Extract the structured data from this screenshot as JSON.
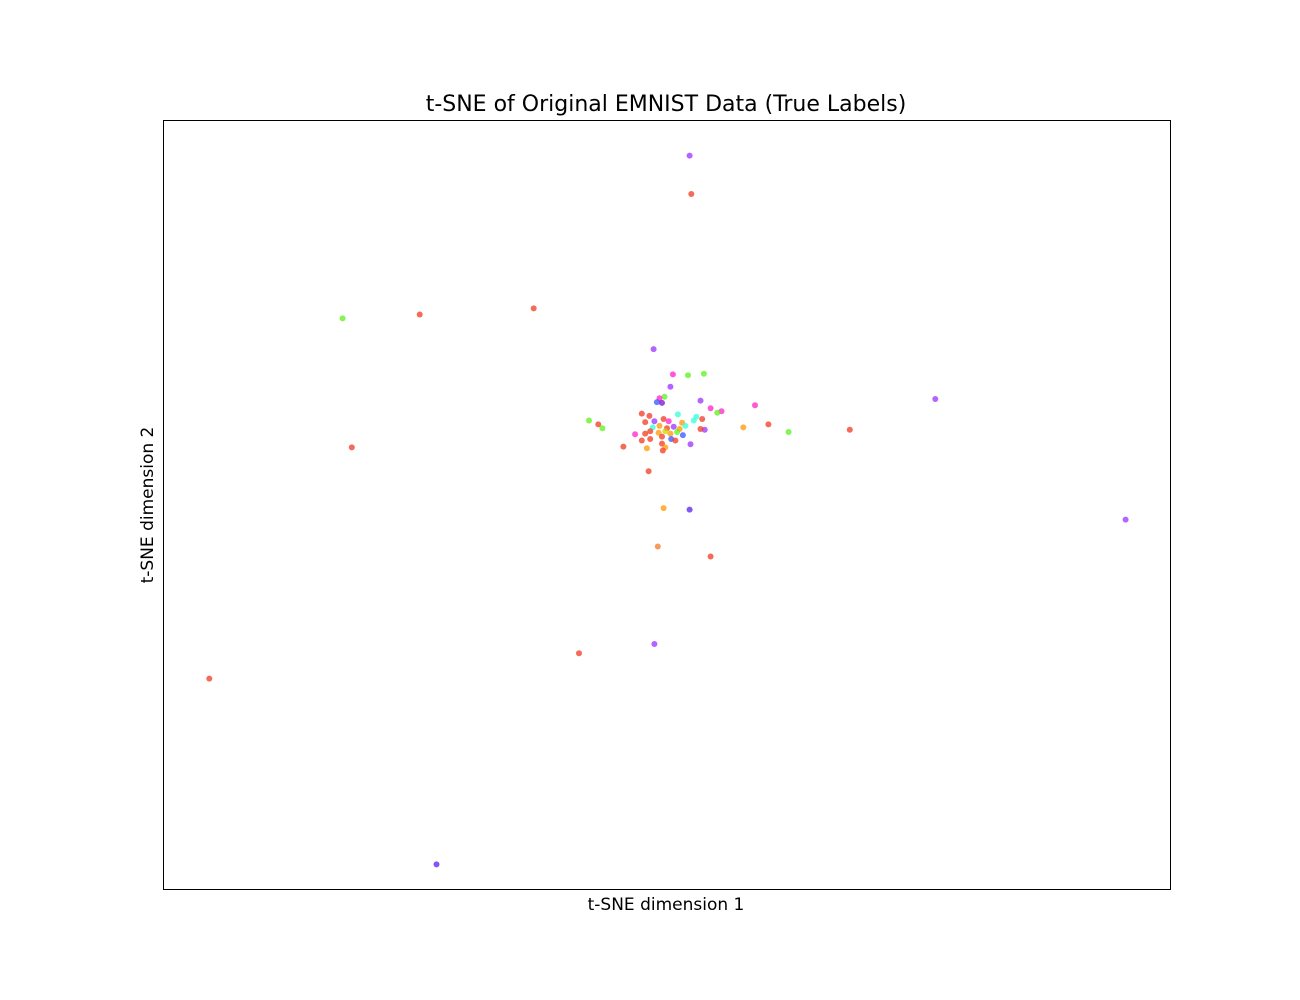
{
  "chart_data": {
    "type": "scatter",
    "title": "t-SNE of Original EMNIST Data (True Labels)",
    "xlabel": "t-SNE dimension 1",
    "ylabel": "t-SNE dimension 2",
    "xlim": [
      -60,
      60
    ],
    "ylim": [
      -60,
      40
    ],
    "grid": false,
    "legend": "none",
    "ticks": "hidden",
    "marker_alpha": 0.75,
    "points": [
      {
        "x": 2.7,
        "y": 35.5,
        "color": "#9b30ff"
      },
      {
        "x": 2.9,
        "y": 30.5,
        "color": "#f23a22"
      },
      {
        "x": -38.7,
        "y": 14.3,
        "color": "#5cf21a"
      },
      {
        "x": -29.5,
        "y": 14.8,
        "color": "#f23a22"
      },
      {
        "x": -15.9,
        "y": 15.6,
        "color": "#f23a22"
      },
      {
        "x": -1.6,
        "y": 10.3,
        "color": "#9b30ff"
      },
      {
        "x": 0.7,
        "y": 7.0,
        "color": "#ff22cc"
      },
      {
        "x": 2.5,
        "y": 6.9,
        "color": "#5cf21a"
      },
      {
        "x": 4.4,
        "y": 7.1,
        "color": "#5cf21a"
      },
      {
        "x": 0.4,
        "y": 5.4,
        "color": "#9b30ff"
      },
      {
        "x": -0.3,
        "y": 4.1,
        "color": "#5cf21a"
      },
      {
        "x": -0.9,
        "y": 3.9,
        "color": "#ff22cc"
      },
      {
        "x": -1.2,
        "y": 3.4,
        "color": "#3355ff"
      },
      {
        "x": -0.6,
        "y": 3.3,
        "color": "#7a0fd0"
      },
      {
        "x": 4.0,
        "y": 3.6,
        "color": "#9b30ff"
      },
      {
        "x": 10.5,
        "y": 3.0,
        "color": "#ff22cc"
      },
      {
        "x": 5.2,
        "y": 2.6,
        "color": "#ff22cc"
      },
      {
        "x": 6.5,
        "y": 2.2,
        "color": "#ff22cc"
      },
      {
        "x": 6.0,
        "y": 2.0,
        "color": "#5cf21a"
      },
      {
        "x": 32.0,
        "y": 3.8,
        "color": "#9b30ff"
      },
      {
        "x": -3.0,
        "y": 1.9,
        "color": "#f23a22"
      },
      {
        "x": -2.1,
        "y": 1.6,
        "color": "#f23a22"
      },
      {
        "x": 1.3,
        "y": 1.8,
        "color": "#33ffdd"
      },
      {
        "x": 3.5,
        "y": 1.5,
        "color": "#33ffdd"
      },
      {
        "x": -9.3,
        "y": 1.0,
        "color": "#5cf21a"
      },
      {
        "x": -2.6,
        "y": 0.8,
        "color": "#f23a22"
      },
      {
        "x": -1.5,
        "y": 0.9,
        "color": "#9b30ff"
      },
      {
        "x": -0.4,
        "y": 1.2,
        "color": "#f23a22"
      },
      {
        "x": 0.2,
        "y": 0.9,
        "color": "#ff22cc"
      },
      {
        "x": 1.8,
        "y": 0.7,
        "color": "#ff9800"
      },
      {
        "x": 3.2,
        "y": 1.0,
        "color": "#33ffdd"
      },
      {
        "x": 4.2,
        "y": 1.2,
        "color": "#f23a22"
      },
      {
        "x": -8.2,
        "y": 0.5,
        "color": "#f23a22"
      },
      {
        "x": 12.1,
        "y": 0.5,
        "color": "#f23a22"
      },
      {
        "x": 9.1,
        "y": 0.1,
        "color": "#ff9800"
      },
      {
        "x": -7.7,
        "y": 0.0,
        "color": "#5cf21a"
      },
      {
        "x": -1.7,
        "y": 0.1,
        "color": "#33ffdd"
      },
      {
        "x": -0.9,
        "y": 0.3,
        "color": "#ff9800"
      },
      {
        "x": 0.0,
        "y": 0.0,
        "color": "#f23a22"
      },
      {
        "x": 0.8,
        "y": 0.2,
        "color": "#9b30ff"
      },
      {
        "x": 1.5,
        "y": -0.1,
        "color": "#ff9800"
      },
      {
        "x": 2.2,
        "y": 0.3,
        "color": "#33ffdd"
      },
      {
        "x": 4.5,
        "y": -0.2,
        "color": "#9b30ff"
      },
      {
        "x": 4.0,
        "y": -0.1,
        "color": "#f23a22"
      },
      {
        "x": 21.8,
        "y": -0.2,
        "color": "#f23a22"
      },
      {
        "x": 14.5,
        "y": -0.5,
        "color": "#5cf21a"
      },
      {
        "x": -2.0,
        "y": -0.4,
        "color": "#f23a22"
      },
      {
        "x": -1.0,
        "y": -0.6,
        "color": "#ff9800"
      },
      {
        "x": -0.2,
        "y": -0.4,
        "color": "#d4d400"
      },
      {
        "x": 0.4,
        "y": -0.7,
        "color": "#ff9800"
      },
      {
        "x": 1.2,
        "y": -0.5,
        "color": "#5cf21a"
      },
      {
        "x": 1.9,
        "y": -0.9,
        "color": "#3355ff"
      },
      {
        "x": -3.8,
        "y": -0.8,
        "color": "#ff22cc"
      },
      {
        "x": -2.6,
        "y": -0.7,
        "color": "#f23a22"
      },
      {
        "x": -0.6,
        "y": -1.1,
        "color": "#f23a22"
      },
      {
        "x": 0.5,
        "y": -1.4,
        "color": "#3355ff"
      },
      {
        "x": 1.0,
        "y": -1.6,
        "color": "#f23a22"
      },
      {
        "x": -2.0,
        "y": -1.4,
        "color": "#f23a22"
      },
      {
        "x": -3.0,
        "y": -1.6,
        "color": "#f23a22"
      },
      {
        "x": -5.2,
        "y": -2.4,
        "color": "#f23a22"
      },
      {
        "x": -0.6,
        "y": -2.0,
        "color": "#f23a22"
      },
      {
        "x": -0.2,
        "y": -2.5,
        "color": "#ff9800"
      },
      {
        "x": -2.4,
        "y": -2.6,
        "color": "#ff9800"
      },
      {
        "x": 2.8,
        "y": -2.1,
        "color": "#9b30ff"
      },
      {
        "x": -0.5,
        "y": -2.9,
        "color": "#f23a22"
      },
      {
        "x": -37.6,
        "y": -2.5,
        "color": "#f23a22"
      },
      {
        "x": -2.2,
        "y": -5.6,
        "color": "#f23a22"
      },
      {
        "x": -0.4,
        "y": -10.4,
        "color": "#ff9800"
      },
      {
        "x": 2.7,
        "y": -10.6,
        "color": "#5a1ff0"
      },
      {
        "x": 54.7,
        "y": -11.9,
        "color": "#9b30ff"
      },
      {
        "x": -1.1,
        "y": -15.4,
        "color": "#f57a22"
      },
      {
        "x": 5.2,
        "y": -16.7,
        "color": "#f23a22"
      },
      {
        "x": -1.5,
        "y": -28.1,
        "color": "#9b30ff"
      },
      {
        "x": -10.5,
        "y": -29.3,
        "color": "#f23a22"
      },
      {
        "x": -54.6,
        "y": -32.6,
        "color": "#f23a22"
      },
      {
        "x": -27.5,
        "y": -56.8,
        "color": "#5a1ff0"
      }
    ]
  }
}
